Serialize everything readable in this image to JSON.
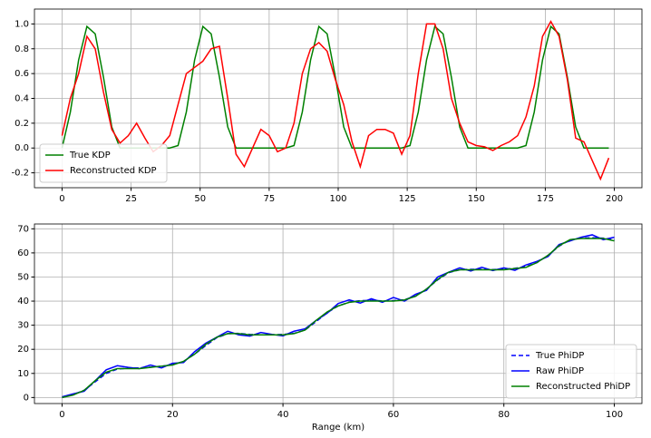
{
  "chart_data": [
    {
      "type": "line",
      "grid": true,
      "legend": "lower left",
      "x": [
        0,
        3,
        6,
        9,
        12,
        15,
        18,
        21,
        24,
        27,
        30,
        33,
        36,
        39,
        42,
        45,
        48,
        51,
        54,
        57,
        60,
        63,
        66,
        69,
        72,
        75,
        78,
        81,
        84,
        87,
        90,
        93,
        96,
        99,
        102,
        105,
        108,
        111,
        114,
        117,
        120,
        123,
        126,
        129,
        132,
        135,
        138,
        141,
        144,
        147,
        150,
        153,
        156,
        159,
        162,
        165,
        168,
        171,
        174,
        177,
        180,
        183,
        186,
        189,
        192,
        195,
        198
      ],
      "series": [
        {
          "name": "True KDP",
          "color": "#008000",
          "style": "solid",
          "values": [
            0,
            0.29,
            0.71,
            0.98,
            0.92,
            0.57,
            0.17,
            0,
            0,
            0,
            0,
            0,
            0,
            0,
            0.02,
            0.29,
            0.71,
            0.98,
            0.92,
            0.57,
            0.17,
            0,
            0,
            0,
            0,
            0,
            0,
            0,
            0.02,
            0.29,
            0.71,
            0.98,
            0.92,
            0.57,
            0.17,
            0,
            0,
            0,
            0,
            0,
            0,
            0,
            0.02,
            0.29,
            0.71,
            0.98,
            0.92,
            0.57,
            0.17,
            0,
            0,
            0,
            0,
            0,
            0,
            0,
            0.02,
            0.29,
            0.71,
            0.98,
            0.92,
            0.57,
            0.17,
            0,
            0,
            0,
            0
          ]
        },
        {
          "name": "Reconstructed KDP",
          "color": "#ff0000",
          "style": "solid",
          "values": [
            0.1,
            0.4,
            0.6,
            0.9,
            0.8,
            0.45,
            0.15,
            0.04,
            0.1,
            0.2,
            0.08,
            -0.03,
            0.02,
            0.1,
            0.35,
            0.6,
            0.65,
            0.7,
            0.8,
            0.82,
            0.4,
            -0.05,
            -0.15,
            0,
            0.15,
            0.1,
            -0.03,
            0,
            0.2,
            0.6,
            0.8,
            0.85,
            0.78,
            0.55,
            0.35,
            0.05,
            -0.15,
            0.1,
            0.15,
            0.15,
            0.12,
            -0.05,
            0.1,
            0.6,
            1.0,
            1.0,
            0.8,
            0.4,
            0.2,
            0.05,
            0.02,
            0.01,
            -0.02,
            0.02,
            0.05,
            0.1,
            0.25,
            0.5,
            0.9,
            1.02,
            0.9,
            0.55,
            0.08,
            0.05,
            -0.1,
            -0.25,
            -0.08
          ]
        }
      ],
      "xlim": [
        -10,
        210
      ],
      "xticks": [
        0,
        25,
        50,
        75,
        100,
        125,
        150,
        175,
        200
      ],
      "ylim": [
        -0.32,
        1.12
      ],
      "yticks": [
        -0.2,
        {
          "value": 0,
          "label": "0.0"
        },
        0.2,
        0.4,
        0.6,
        0.8,
        {
          "value": 1,
          "label": "1.0"
        }
      ]
    },
    {
      "type": "line",
      "grid": true,
      "legend": "lower right",
      "x_label": "Range (km)",
      "x": [
        0,
        2,
        4,
        6,
        8,
        10,
        12,
        14,
        16,
        18,
        20,
        22,
        24,
        26,
        28,
        30,
        32,
        34,
        36,
        38,
        40,
        42,
        44,
        46,
        48,
        50,
        52,
        54,
        56,
        58,
        60,
        62,
        64,
        66,
        68,
        70,
        72,
        74,
        76,
        78,
        80,
        82,
        84,
        86,
        88,
        90,
        92,
        94,
        96,
        98,
        100
      ],
      "series": [
        {
          "name": "True PhiDP",
          "color": "#0000ff",
          "style": "dashed",
          "values": [
            0,
            1.2,
            3,
            6.5,
            10,
            11.8,
            12.2,
            12.3,
            12.6,
            13,
            13.6,
            15,
            18,
            21.5,
            24.8,
            26.5,
            26.6,
            26.2,
            26,
            26,
            26.2,
            26.6,
            28,
            31.5,
            35.2,
            38,
            39.6,
            40.2,
            40.3,
            40.1,
            40.2,
            40.6,
            42,
            45,
            48.8,
            51.8,
            53,
            53.2,
            53.2,
            53.1,
            53.2,
            53.6,
            54.3,
            56,
            59,
            62.8,
            65.4,
            66.2,
            66.3,
            66.1,
            65.5
          ]
        },
        {
          "name": "Raw PhiDP",
          "color": "#0000ff",
          "style": "solid",
          "values": [
            0.3,
            1.5,
            2.6,
            7,
            11.5,
            13.2,
            12.5,
            12,
            13.5,
            12.3,
            14.2,
            14.5,
            19,
            22.5,
            25,
            27.5,
            26,
            25.5,
            27,
            26.2,
            25.6,
            27.5,
            28.5,
            32,
            35,
            39,
            40.5,
            39.2,
            41,
            39.5,
            41.5,
            40,
            42.8,
            44.5,
            50,
            52,
            53.8,
            52.5,
            54,
            52.7,
            53.8,
            52.8,
            55,
            56.5,
            58.5,
            63.5,
            65,
            66.5,
            67.5,
            65.5,
            66.5
          ]
        },
        {
          "name": "Reconstructed PhiDP",
          "color": "#008000",
          "style": "solid",
          "values": [
            0,
            1,
            3,
            7,
            10.5,
            12,
            12,
            12,
            12.5,
            13,
            13.5,
            15,
            18,
            22,
            25,
            26.5,
            26.5,
            26,
            26,
            26,
            26,
            26.5,
            28,
            32,
            35.5,
            38,
            39.5,
            40,
            40,
            40,
            40,
            40.5,
            42,
            45,
            49,
            52,
            53,
            53,
            53,
            53,
            53,
            53.5,
            54,
            56,
            59,
            63,
            65.5,
            66,
            66,
            66,
            65
          ]
        }
      ],
      "xlim": [
        -5,
        105
      ],
      "xticks": [
        0,
        20,
        40,
        60,
        80,
        100
      ],
      "ylim": [
        -2.5,
        72
      ],
      "yticks": [
        0,
        10,
        20,
        30,
        40,
        50,
        60,
        70
      ]
    }
  ]
}
